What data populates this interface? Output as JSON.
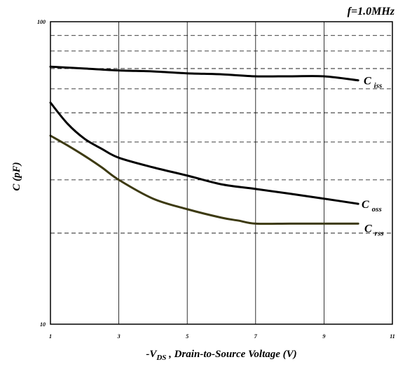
{
  "chart_data": {
    "type": "line",
    "title": "",
    "annotation": "f=1.0MHz",
    "xlabel": {
      "prefix": "-V",
      "subscript": "DS",
      "suffix": " , Drain-to-Source Voltage (V)"
    },
    "ylabel": "C (pF)",
    "xlim": [
      1,
      11
    ],
    "ylim": [
      10,
      100
    ],
    "yscale": "log",
    "x_ticks": [
      1,
      3,
      5,
      7,
      9,
      11
    ],
    "x_tick_labels": [
      "1",
      "3",
      "5",
      "7",
      "9",
      "11"
    ],
    "y_tick_labels": [
      "10",
      "100"
    ],
    "grid": {
      "x": "solid",
      "y": "dashed",
      "y_values": [
        20,
        30,
        40,
        50,
        60,
        70,
        80,
        90
      ]
    },
    "series": [
      {
        "name": "iss",
        "label_main": "C",
        "label_sub": "iss",
        "color": "#000000",
        "x": [
          1,
          2,
          3,
          4,
          5,
          6,
          7,
          8,
          9,
          10
        ],
        "y": [
          71,
          70,
          69,
          68.5,
          67.5,
          67,
          66,
          66,
          66,
          64
        ]
      },
      {
        "name": "oss",
        "label_main": "C",
        "label_sub": "oss",
        "color": "#000000",
        "x": [
          1,
          1.5,
          2,
          2.5,
          3,
          4,
          5,
          6,
          7,
          8,
          9,
          10
        ],
        "y": [
          54,
          46,
          41,
          38,
          35.5,
          33,
          31,
          29,
          28,
          27,
          26,
          25
        ]
      },
      {
        "name": "rss",
        "label_main": "C",
        "label_sub": "rss",
        "color": "#3d3a12",
        "x": [
          1,
          1.5,
          2,
          2.5,
          3,
          4,
          5,
          6,
          6.5,
          7,
          8,
          9,
          10
        ],
        "y": [
          42,
          39,
          36,
          33,
          30,
          26,
          24,
          22.5,
          22,
          21.5,
          21.5,
          21.5,
          21.5
        ]
      }
    ]
  }
}
